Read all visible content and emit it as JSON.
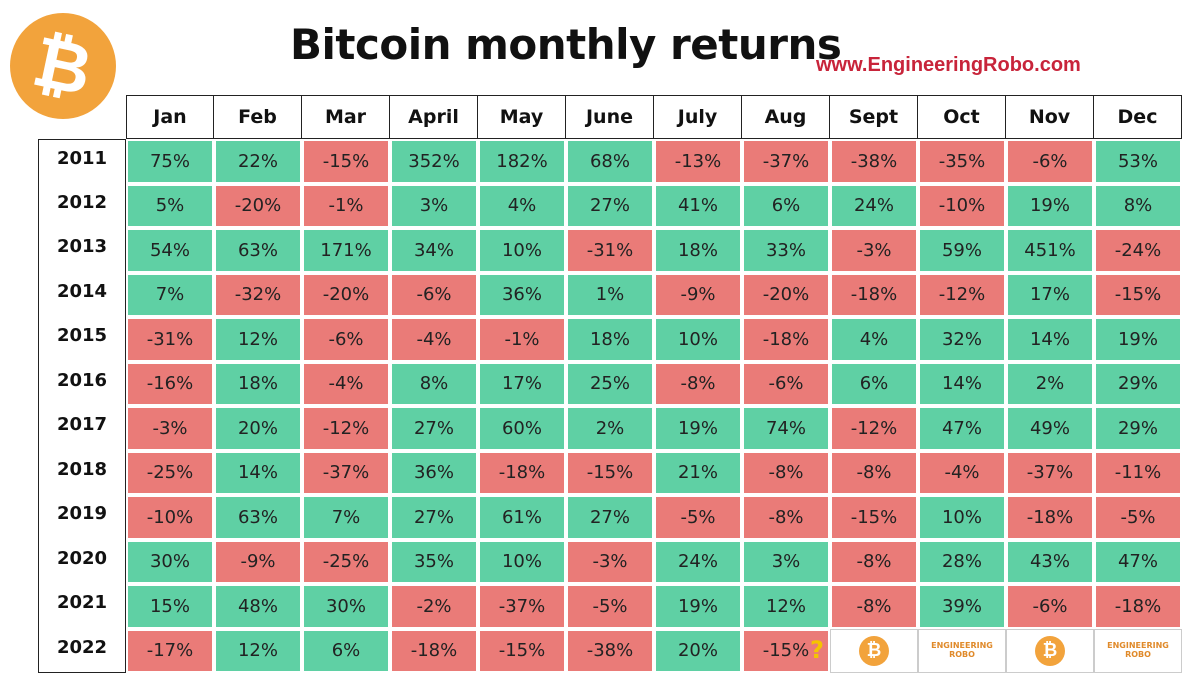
{
  "title": "Bitcoin monthly returns",
  "site": "www.EngineeringRobo.com",
  "colors": {
    "positive": "#5fd0a4",
    "negative": "#ea7b78",
    "brand": "#f2a33c",
    "site_text": "#c8243a"
  },
  "question_mark": "?",
  "watermark_text": "ENGINEERING ROBO",
  "chart_data": {
    "type": "table",
    "title": "Bitcoin monthly returns",
    "columns": [
      "Jan",
      "Feb",
      "Mar",
      "April",
      "May",
      "June",
      "July",
      "Aug",
      "Sept",
      "Oct",
      "Nov",
      "Dec"
    ],
    "rows": [
      {
        "year": "2011",
        "values": [
          "75%",
          "22%",
          "-15%",
          "352%",
          "182%",
          "68%",
          "-13%",
          "-37%",
          "-38%",
          "-35%",
          "-6%",
          "53%"
        ]
      },
      {
        "year": "2012",
        "values": [
          "5%",
          "-20%",
          "-1%",
          "3%",
          "4%",
          "27%",
          "41%",
          "6%",
          "24%",
          "-10%",
          "19%",
          "8%"
        ]
      },
      {
        "year": "2013",
        "values": [
          "54%",
          "63%",
          "171%",
          "34%",
          "10%",
          "-31%",
          "18%",
          "33%",
          "-3%",
          "59%",
          "451%",
          "-24%"
        ]
      },
      {
        "year": "2014",
        "values": [
          "7%",
          "-32%",
          "-20%",
          "-6%",
          "36%",
          "1%",
          "-9%",
          "-20%",
          "-18%",
          "-12%",
          "17%",
          "-15%"
        ]
      },
      {
        "year": "2015",
        "values": [
          "-31%",
          "12%",
          "-6%",
          "-4%",
          "-1%",
          "18%",
          "10%",
          "-18%",
          "4%",
          "32%",
          "14%",
          "19%"
        ]
      },
      {
        "year": "2016",
        "values": [
          "-16%",
          "18%",
          "-4%",
          "8%",
          "17%",
          "25%",
          "-8%",
          "-6%",
          "6%",
          "14%",
          "2%",
          "29%"
        ]
      },
      {
        "year": "2017",
        "values": [
          "-3%",
          "20%",
          "-12%",
          "27%",
          "60%",
          "2%",
          "19%",
          "74%",
          "-12%",
          "47%",
          "49%",
          "29%"
        ]
      },
      {
        "year": "2018",
        "values": [
          "-25%",
          "14%",
          "-37%",
          "36%",
          "-18%",
          "-15%",
          "21%",
          "-8%",
          "-8%",
          "-4%",
          "-37%",
          "-11%"
        ]
      },
      {
        "year": "2019",
        "values": [
          "-10%",
          "63%",
          "7%",
          "27%",
          "61%",
          "27%",
          "-5%",
          "-8%",
          "-15%",
          "10%",
          "-18%",
          "-5%"
        ]
      },
      {
        "year": "2020",
        "values": [
          "30%",
          "-9%",
          "-25%",
          "35%",
          "10%",
          "-3%",
          "24%",
          "3%",
          "-8%",
          "28%",
          "43%",
          "47%"
        ]
      },
      {
        "year": "2021",
        "values": [
          "15%",
          "48%",
          "30%",
          "-2%",
          "-37%",
          "-5%",
          "19%",
          "12%",
          "-8%",
          "39%",
          "-6%",
          "-18%"
        ]
      },
      {
        "year": "2022",
        "values": [
          "-17%",
          "12%",
          "6%",
          "-18%",
          "-15%",
          "-38%",
          "20%",
          "-15%",
          null,
          null,
          null,
          null
        ]
      }
    ]
  }
}
